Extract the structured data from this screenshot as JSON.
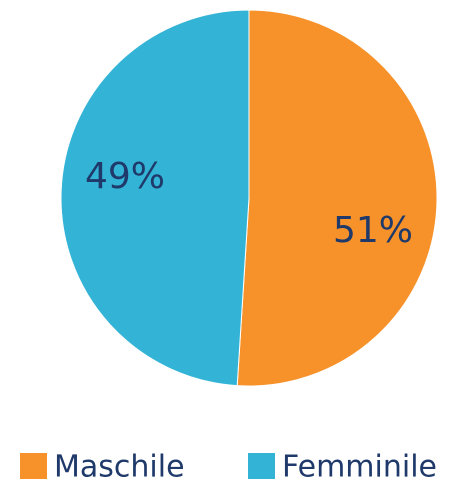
{
  "chart_data": {
    "type": "pie",
    "categories": [
      "Maschile",
      "Femminile"
    ],
    "values": [
      51,
      49
    ],
    "value_labels": [
      "51%",
      "49%"
    ],
    "colors": [
      "#f7922a",
      "#33b3d6"
    ],
    "legend": "bottom"
  }
}
